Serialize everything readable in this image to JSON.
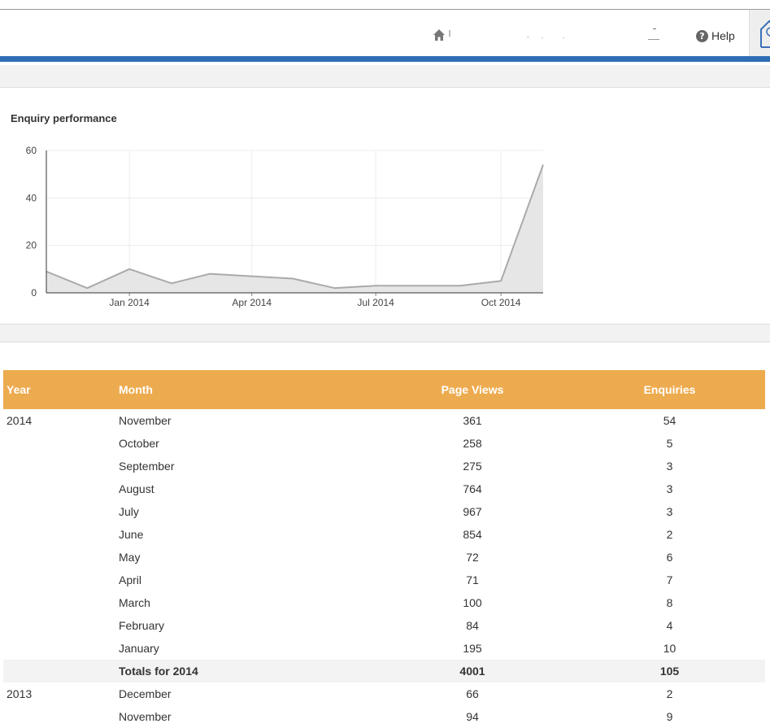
{
  "header": {
    "help_label": "Help",
    "icons": {
      "home": "home-icon",
      "help": "question-circle-icon",
      "logo": "site-logo"
    }
  },
  "chart_title": "Enquiry performance",
  "chart_data": {
    "type": "area",
    "x": [
      "2013-11",
      "2013-12",
      "2014-01",
      "2014-02",
      "2014-03",
      "2014-04",
      "2014-05",
      "2014-06",
      "2014-07",
      "2014-08",
      "2014-09",
      "2014-10",
      "2014-11"
    ],
    "series": [
      {
        "values": [
          9,
          2,
          10,
          4,
          8,
          7,
          6,
          2,
          3,
          3,
          3,
          5,
          54
        ]
      }
    ],
    "x_tick_labels": [
      "Jan 2014",
      "Apr 2014",
      "Jul 2014",
      "Oct 2014"
    ],
    "y_ticks": [
      0,
      20,
      40,
      60
    ],
    "ylim": [
      0,
      60
    ],
    "grid": true,
    "line_color": "#aaaaaa",
    "fill_color": "#e6e6e6"
  },
  "table": {
    "headers": {
      "year": "Year",
      "month": "Month",
      "page_views": "Page Views",
      "enquiries": "Enquiries"
    },
    "header_color": "#edab4f",
    "rows": [
      {
        "year": "2014",
        "month": "November",
        "page_views": "361",
        "enquiries": "54"
      },
      {
        "year": "",
        "month": "October",
        "page_views": "258",
        "enquiries": "5"
      },
      {
        "year": "",
        "month": "September",
        "page_views": "275",
        "enquiries": "3"
      },
      {
        "year": "",
        "month": "August",
        "page_views": "764",
        "enquiries": "3"
      },
      {
        "year": "",
        "month": "July",
        "page_views": "967",
        "enquiries": "3"
      },
      {
        "year": "",
        "month": "June",
        "page_views": "854",
        "enquiries": "2"
      },
      {
        "year": "",
        "month": "May",
        "page_views": "72",
        "enquiries": "6"
      },
      {
        "year": "",
        "month": "April",
        "page_views": "71",
        "enquiries": "7"
      },
      {
        "year": "",
        "month": "March",
        "page_views": "100",
        "enquiries": "8"
      },
      {
        "year": "",
        "month": "February",
        "page_views": "84",
        "enquiries": "4"
      },
      {
        "year": "",
        "month": "January",
        "page_views": "195",
        "enquiries": "10"
      },
      {
        "year": "",
        "month": "Totals for 2014",
        "page_views": "4001",
        "enquiries": "105",
        "total": true
      },
      {
        "year": "2013",
        "month": "December",
        "page_views": "66",
        "enquiries": "2"
      },
      {
        "year": "",
        "month": "November",
        "page_views": "94",
        "enquiries": "9"
      }
    ]
  },
  "colors": {
    "accent_bar": "#2f6db5",
    "table_header": "#edab4f"
  }
}
